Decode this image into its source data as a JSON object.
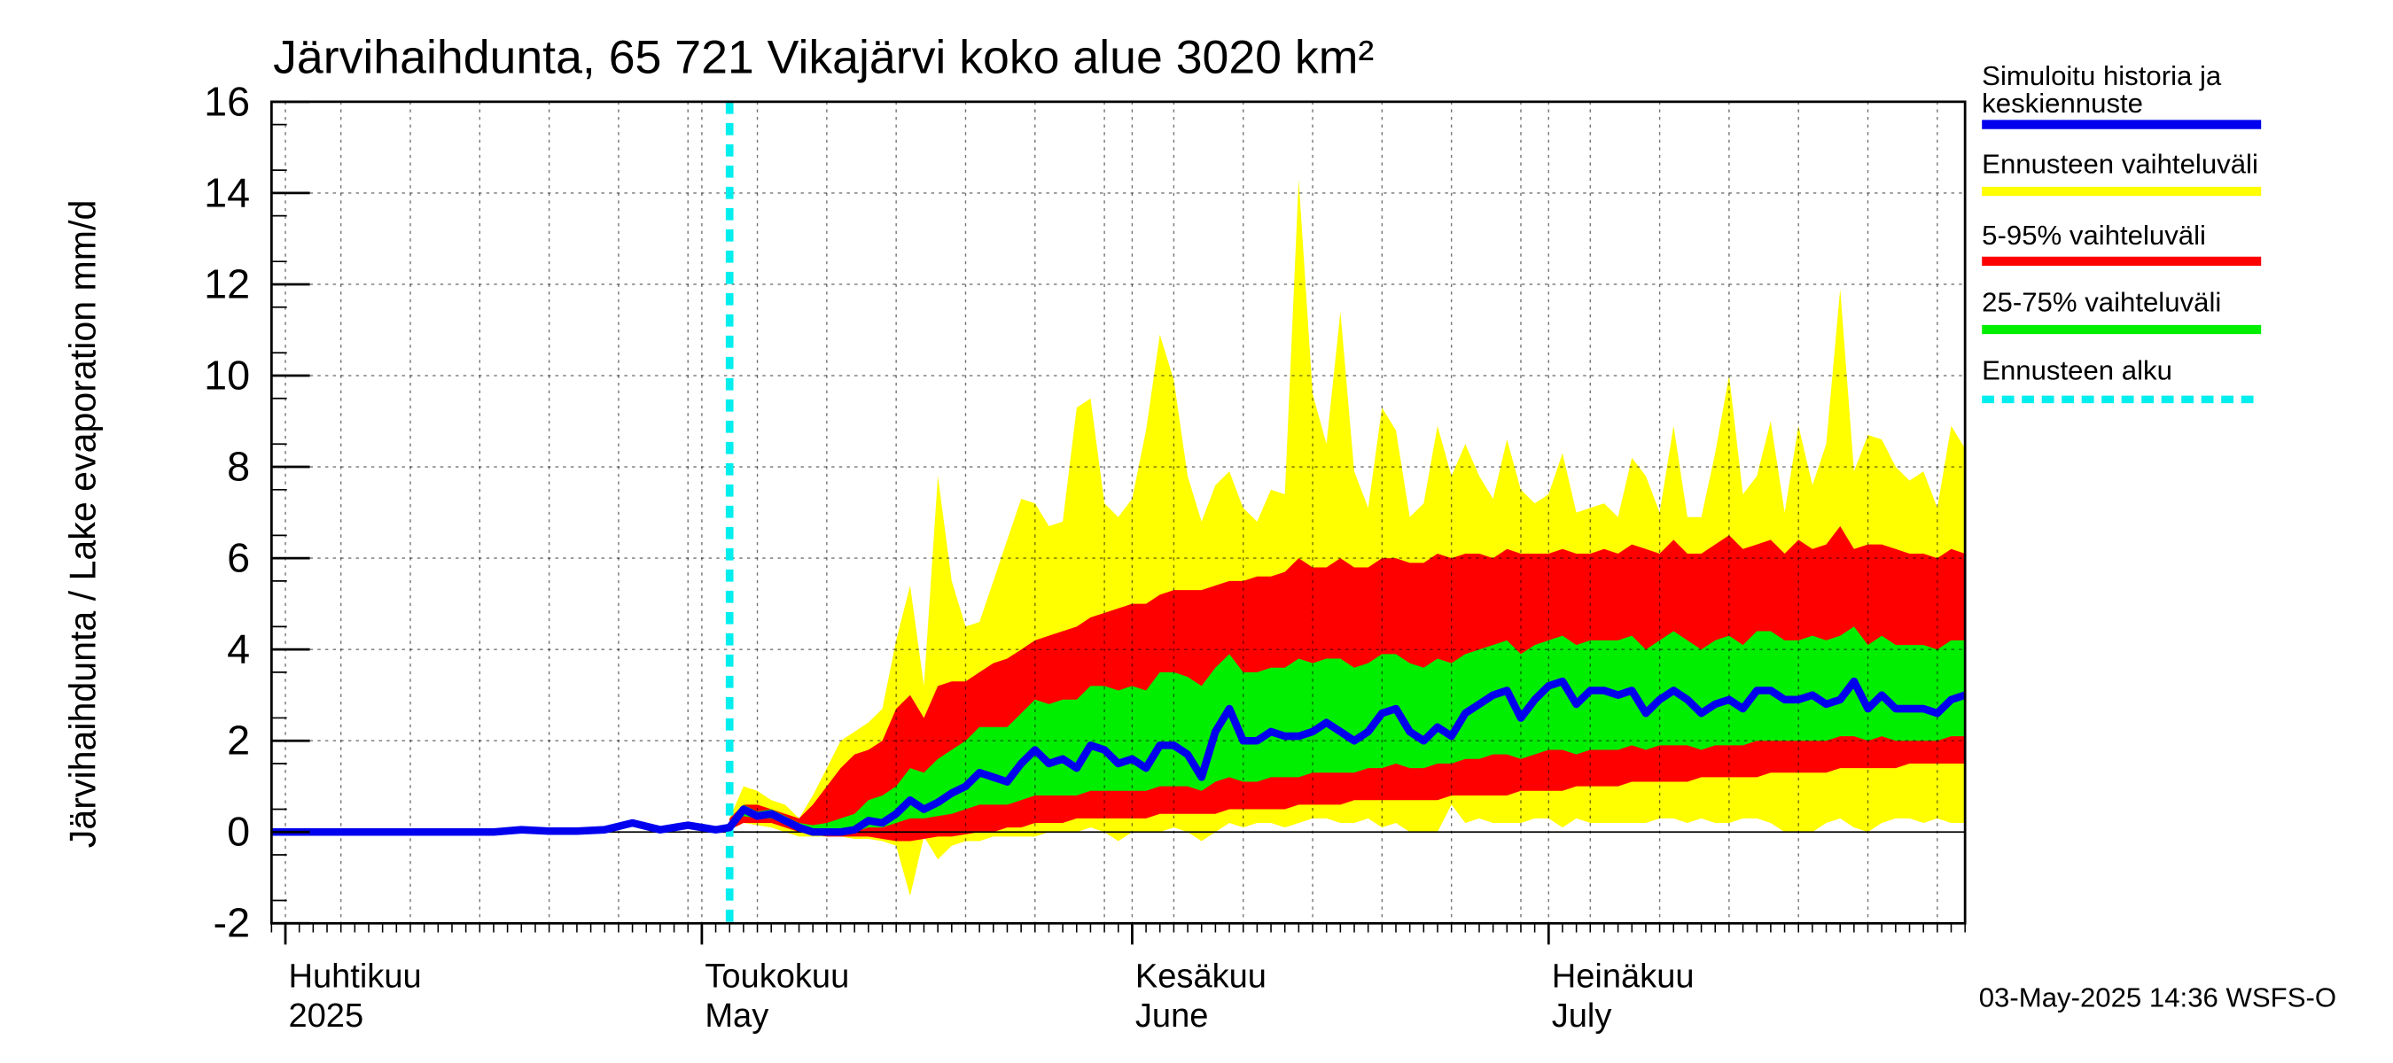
{
  "chart_data": {
    "type": "area",
    "title": "Järvihaihdunta, 65 721 Vikajärvi koko alue 3020 km²",
    "ylabel": "Järvihaihdunta / Lake evaporation   mm/d",
    "ylim": [
      -2,
      16
    ],
    "yticks": [
      "-2",
      "0",
      "2",
      "4",
      "6",
      "8",
      "10",
      "12",
      "14",
      "16"
    ],
    "xlim": [
      "2025-03-31",
      "2025-07-31"
    ],
    "grid": true,
    "x_labels": [
      {
        "date": "2025-04-01",
        "fi": "Huhtikuu",
        "en": "2025"
      },
      {
        "date": "2025-05-01",
        "fi": "Toukokuu",
        "en": "May"
      },
      {
        "date": "2025-06-01",
        "fi": "Kesäkuu",
        "en": "June"
      },
      {
        "date": "2025-07-01",
        "fi": "Heinäkuu",
        "en": "July"
      }
    ],
    "forecast_start": "2025-05-03",
    "legend": {
      "placement": "right",
      "items": [
        {
          "label": "Simuloitu historia ja keskiennuste",
          "lines": [
            "Simuloitu historia ja",
            "keskiennuste"
          ],
          "color": "#0000ee",
          "style": "solid"
        },
        {
          "label": "Ennusteen vaihteluväli",
          "lines": [
            "Ennusteen vaihteluväli"
          ],
          "color": "#ffff00",
          "style": "solid"
        },
        {
          "label": "5-95% vaihteluväli",
          "lines": [
            "5-95% vaihteluväli"
          ],
          "color": "#ff0000",
          "style": "solid"
        },
        {
          "label": "25-75% vaihteluväli",
          "lines": [
            "25-75% vaihteluväli"
          ],
          "color": "#00ee00",
          "style": "solid"
        },
        {
          "label": "Ennusteen alku",
          "lines": [
            "Ennusteen alku"
          ],
          "color": "#00eeee",
          "style": "dashed"
        }
      ]
    },
    "history": {
      "x": [
        "2025-03-31",
        "2025-04-04",
        "2025-04-08",
        "2025-04-12",
        "2025-04-16",
        "2025-04-18",
        "2025-04-20",
        "2025-04-22",
        "2025-04-24",
        "2025-04-26",
        "2025-04-28",
        "2025-04-30",
        "2025-05-01",
        "2025-05-02",
        "2025-05-03"
      ],
      "y": [
        0,
        0,
        0,
        0,
        0,
        0.05,
        0.02,
        0.02,
        0.05,
        0.2,
        0.05,
        0.15,
        0.1,
        0.05,
        0.1
      ]
    },
    "forecast": {
      "x": [
        "2025-05-03",
        "2025-05-04",
        "2025-05-05",
        "2025-05-06",
        "2025-05-07",
        "2025-05-08",
        "2025-05-09",
        "2025-05-10",
        "2025-05-11",
        "2025-05-12",
        "2025-05-13",
        "2025-05-14",
        "2025-05-15",
        "2025-05-16",
        "2025-05-17",
        "2025-05-18",
        "2025-05-19",
        "2025-05-20",
        "2025-05-21",
        "2025-05-22",
        "2025-05-23",
        "2025-05-24",
        "2025-05-25",
        "2025-05-26",
        "2025-05-27",
        "2025-05-28",
        "2025-05-29",
        "2025-05-30",
        "2025-05-31",
        "2025-06-01",
        "2025-06-02",
        "2025-06-03",
        "2025-06-04",
        "2025-06-05",
        "2025-06-06",
        "2025-06-07",
        "2025-06-08",
        "2025-06-09",
        "2025-06-10",
        "2025-06-11",
        "2025-06-12",
        "2025-06-13",
        "2025-06-14",
        "2025-06-15",
        "2025-06-16",
        "2025-06-17",
        "2025-06-18",
        "2025-06-19",
        "2025-06-20",
        "2025-06-21",
        "2025-06-22",
        "2025-06-23",
        "2025-06-24",
        "2025-06-25",
        "2025-06-26",
        "2025-06-27",
        "2025-06-28",
        "2025-06-29",
        "2025-06-30",
        "2025-07-01",
        "2025-07-02",
        "2025-07-03",
        "2025-07-04",
        "2025-07-05",
        "2025-07-06",
        "2025-07-07",
        "2025-07-08",
        "2025-07-09",
        "2025-07-10",
        "2025-07-11",
        "2025-07-12",
        "2025-07-13",
        "2025-07-14",
        "2025-07-15",
        "2025-07-16",
        "2025-07-17",
        "2025-07-18",
        "2025-07-19",
        "2025-07-20",
        "2025-07-21",
        "2025-07-22",
        "2025-07-23",
        "2025-07-24",
        "2025-07-25",
        "2025-07-26",
        "2025-07-27",
        "2025-07-28",
        "2025-07-29",
        "2025-07-30",
        "2025-07-31"
      ],
      "mean": [
        0.1,
        0.5,
        0.35,
        0.4,
        0.25,
        0.1,
        0.0,
        0.0,
        0.0,
        0.05,
        0.25,
        0.2,
        0.4,
        0.7,
        0.5,
        0.65,
        0.85,
        1.0,
        1.3,
        1.2,
        1.1,
        1.5,
        1.8,
        1.5,
        1.6,
        1.4,
        1.9,
        1.8,
        1.5,
        1.6,
        1.4,
        1.9,
        1.9,
        1.7,
        1.2,
        2.2,
        2.7,
        2.0,
        2.0,
        2.2,
        2.1,
        2.1,
        2.2,
        2.4,
        2.2,
        2.0,
        2.2,
        2.6,
        2.7,
        2.2,
        2.0,
        2.3,
        2.1,
        2.6,
        2.8,
        3.0,
        3.1,
        2.5,
        2.9,
        3.2,
        3.3,
        2.8,
        3.1,
        3.1,
        3.0,
        3.1,
        2.6,
        2.9,
        3.1,
        2.9,
        2.6,
        2.8,
        2.9,
        2.7,
        3.1,
        3.1,
        2.9,
        2.9,
        3.0,
        2.8,
        2.9,
        3.3,
        2.7,
        3.0,
        2.7,
        2.7,
        2.7,
        2.6,
        2.9,
        3.0
      ],
      "y_min": [
        0.05,
        0.2,
        0.15,
        0.1,
        0.0,
        -0.1,
        -0.1,
        -0.1,
        -0.1,
        -0.15,
        -0.15,
        -0.2,
        -0.3,
        -1.4,
        -0.1,
        -0.6,
        -0.3,
        -0.2,
        -0.2,
        -0.1,
        -0.1,
        -0.1,
        -0.1,
        0.0,
        0.0,
        0.0,
        0.1,
        0.0,
        -0.2,
        0.0,
        0.0,
        0.0,
        0.1,
        0.0,
        -0.2,
        0.0,
        0.2,
        0.1,
        0.2,
        0.2,
        0.1,
        0.2,
        0.3,
        0.3,
        0.2,
        0.2,
        0.3,
        0.1,
        0.2,
        0.0,
        0.0,
        0.0,
        0.6,
        0.2,
        0.3,
        0.2,
        0.2,
        0.2,
        0.3,
        0.3,
        0.1,
        0.3,
        0.2,
        0.2,
        0.2,
        0.2,
        0.2,
        0.3,
        0.3,
        0.2,
        0.3,
        0.2,
        0.2,
        0.3,
        0.3,
        0.2,
        0.0,
        0.0,
        0.0,
        0.2,
        0.3,
        0.1,
        0.0,
        0.2,
        0.3,
        0.3,
        0.2,
        0.3,
        0.2,
        0.2
      ],
      "y_max": [
        0.3,
        1.0,
        0.9,
        0.7,
        0.6,
        0.3,
        0.8,
        1.4,
        2.0,
        2.2,
        2.4,
        2.7,
        4.2,
        5.4,
        3.2,
        7.8,
        5.5,
        4.5,
        4.6,
        5.5,
        6.4,
        7.3,
        7.2,
        6.7,
        6.8,
        9.3,
        9.5,
        7.2,
        6.9,
        7.3,
        8.8,
        10.9,
        9.9,
        7.8,
        6.8,
        7.6,
        7.9,
        7.1,
        6.8,
        7.5,
        7.4,
        14.3,
        9.6,
        8.5,
        11.4,
        7.9,
        7.1,
        9.3,
        8.8,
        6.9,
        7.2,
        8.9,
        7.8,
        8.5,
        7.8,
        7.3,
        8.6,
        7.5,
        7.2,
        7.4,
        8.3,
        7.0,
        7.1,
        7.2,
        6.9,
        8.2,
        7.8,
        7.0,
        8.9,
        6.9,
        6.9,
        8.3,
        10.0,
        7.4,
        7.8,
        9.0,
        7.0,
        8.9,
        7.6,
        8.5,
        11.9,
        7.9,
        8.7,
        8.6,
        8.0,
        7.7,
        7.9,
        7.1,
        8.9,
        8.4
      ]
    },
    "bands": {
      "p5_95": {
        "low": [
          0.05,
          0.2,
          0.2,
          0.2,
          0.1,
          0.0,
          -0.05,
          -0.1,
          -0.1,
          -0.1,
          -0.1,
          -0.15,
          -0.2,
          -0.2,
          -0.15,
          -0.1,
          -0.1,
          -0.05,
          0.0,
          0.0,
          0.1,
          0.1,
          0.2,
          0.2,
          0.2,
          0.3,
          0.3,
          0.3,
          0.3,
          0.3,
          0.3,
          0.4,
          0.4,
          0.4,
          0.4,
          0.4,
          0.5,
          0.5,
          0.5,
          0.5,
          0.5,
          0.6,
          0.6,
          0.6,
          0.6,
          0.7,
          0.7,
          0.7,
          0.7,
          0.7,
          0.7,
          0.7,
          0.8,
          0.8,
          0.8,
          0.8,
          0.8,
          0.9,
          0.9,
          0.9,
          0.9,
          1.0,
          1.0,
          1.0,
          1.0,
          1.1,
          1.1,
          1.1,
          1.1,
          1.1,
          1.2,
          1.2,
          1.2,
          1.2,
          1.2,
          1.3,
          1.3,
          1.3,
          1.3,
          1.3,
          1.4,
          1.4,
          1.4,
          1.4,
          1.4,
          1.5,
          1.5,
          1.5,
          1.5,
          1.5
        ],
        "high": [
          0.3,
          0.6,
          0.6,
          0.5,
          0.4,
          0.3,
          0.6,
          1.0,
          1.4,
          1.7,
          1.8,
          2.0,
          2.7,
          3.0,
          2.5,
          3.2,
          3.3,
          3.3,
          3.5,
          3.7,
          3.8,
          4.0,
          4.2,
          4.3,
          4.4,
          4.5,
          4.7,
          4.8,
          4.9,
          5.0,
          5.0,
          5.2,
          5.3,
          5.3,
          5.3,
          5.4,
          5.5,
          5.5,
          5.6,
          5.6,
          5.7,
          6.0,
          5.8,
          5.8,
          6.0,
          5.8,
          5.8,
          6.0,
          6.0,
          5.9,
          5.9,
          6.1,
          6.0,
          6.1,
          6.1,
          6.0,
          6.2,
          6.1,
          6.1,
          6.1,
          6.2,
          6.1,
          6.1,
          6.2,
          6.1,
          6.3,
          6.2,
          6.1,
          6.4,
          6.1,
          6.1,
          6.3,
          6.5,
          6.2,
          6.3,
          6.4,
          6.1,
          6.4,
          6.2,
          6.3,
          6.7,
          6.2,
          6.3,
          6.3,
          6.2,
          6.1,
          6.1,
          6.0,
          6.2,
          6.1
        ]
      },
      "p25_75": {
        "low": [
          0.1,
          0.35,
          0.3,
          0.3,
          0.2,
          0.05,
          0.0,
          0.0,
          0.0,
          0.0,
          0.1,
          0.1,
          0.2,
          0.3,
          0.3,
          0.35,
          0.4,
          0.5,
          0.6,
          0.6,
          0.6,
          0.7,
          0.8,
          0.8,
          0.8,
          0.8,
          0.9,
          0.9,
          0.9,
          0.9,
          0.9,
          1.0,
          1.0,
          1.0,
          0.9,
          1.1,
          1.2,
          1.1,
          1.1,
          1.2,
          1.2,
          1.2,
          1.3,
          1.3,
          1.3,
          1.3,
          1.4,
          1.4,
          1.5,
          1.4,
          1.4,
          1.5,
          1.5,
          1.6,
          1.6,
          1.7,
          1.7,
          1.6,
          1.7,
          1.8,
          1.8,
          1.7,
          1.8,
          1.8,
          1.8,
          1.9,
          1.8,
          1.9,
          1.9,
          1.9,
          1.8,
          1.9,
          1.9,
          1.9,
          2.0,
          2.0,
          2.0,
          2.0,
          2.0,
          2.0,
          2.1,
          2.1,
          2.0,
          2.1,
          2.0,
          2.0,
          2.0,
          2.0,
          2.1,
          2.1
        ],
        "high": [
          0.15,
          0.6,
          0.45,
          0.5,
          0.35,
          0.2,
          0.15,
          0.2,
          0.3,
          0.4,
          0.7,
          0.8,
          1.0,
          1.4,
          1.3,
          1.6,
          1.8,
          2.0,
          2.3,
          2.3,
          2.3,
          2.6,
          2.9,
          2.8,
          2.9,
          2.9,
          3.2,
          3.2,
          3.1,
          3.2,
          3.1,
          3.5,
          3.5,
          3.4,
          3.2,
          3.6,
          3.9,
          3.5,
          3.5,
          3.6,
          3.6,
          3.8,
          3.7,
          3.8,
          3.8,
          3.6,
          3.7,
          3.9,
          3.9,
          3.7,
          3.6,
          3.8,
          3.7,
          3.9,
          4.0,
          4.1,
          4.2,
          3.9,
          4.1,
          4.2,
          4.3,
          4.1,
          4.2,
          4.2,
          4.2,
          4.3,
          4.0,
          4.2,
          4.4,
          4.2,
          4.0,
          4.2,
          4.3,
          4.1,
          4.4,
          4.4,
          4.2,
          4.2,
          4.3,
          4.2,
          4.3,
          4.5,
          4.1,
          4.3,
          4.1,
          4.1,
          4.1,
          4.0,
          4.2,
          4.2
        ]
      }
    },
    "timestamp": "03-May-2025 14:36 WSFS-O"
  }
}
